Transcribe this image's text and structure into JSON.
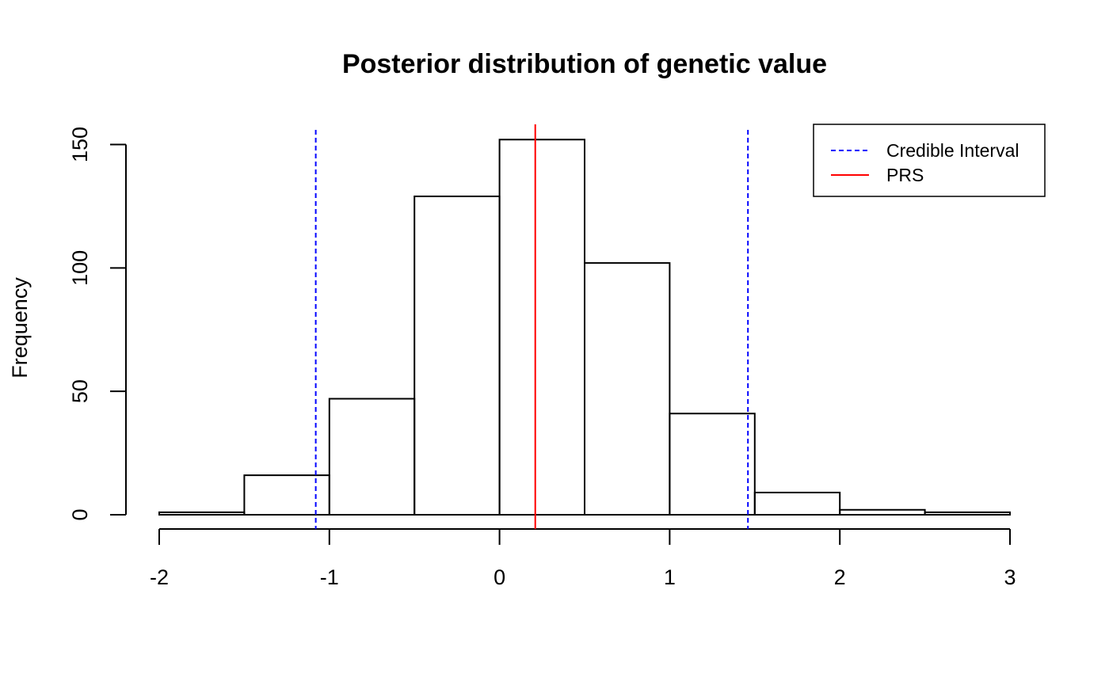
{
  "chart_data": {
    "type": "bar",
    "title": "Posterior distribution of genetic value",
    "xlabel": "",
    "ylabel": "Frequency",
    "xlim": [
      -2,
      3
    ],
    "ylim": [
      0,
      150
    ],
    "xticks": [
      -2,
      -1,
      0,
      1,
      2,
      3
    ],
    "yticks": [
      0,
      50,
      100,
      150
    ],
    "bins": [
      {
        "start": -2.0,
        "end": -1.5,
        "count": 1
      },
      {
        "start": -1.5,
        "end": -1.0,
        "count": 16
      },
      {
        "start": -1.0,
        "end": -0.5,
        "count": 47
      },
      {
        "start": -0.5,
        "end": 0.0,
        "count": 129
      },
      {
        "start": 0.0,
        "end": 0.5,
        "count": 152
      },
      {
        "start": 0.5,
        "end": 1.0,
        "count": 102
      },
      {
        "start": 1.0,
        "end": 1.5,
        "count": 41
      },
      {
        "start": 1.5,
        "end": 2.0,
        "count": 9
      },
      {
        "start": 2.0,
        "end": 2.5,
        "count": 2
      },
      {
        "start": 2.5,
        "end": 3.0,
        "count": 1
      }
    ],
    "vlines": [
      {
        "name": "ci-lower",
        "x": -1.08,
        "color": "#0000ff",
        "style": "dashed"
      },
      {
        "name": "ci-upper",
        "x": 1.46,
        "color": "#0000ff",
        "style": "dashed"
      },
      {
        "name": "prs",
        "x": 0.21,
        "color": "#ff0000",
        "style": "solid"
      }
    ],
    "legend": {
      "position": "top-right",
      "entries": [
        {
          "label": "Credible Interval",
          "color": "#0000ff",
          "style": "dashed"
        },
        {
          "label": "PRS",
          "color": "#ff0000",
          "style": "solid"
        }
      ]
    }
  }
}
